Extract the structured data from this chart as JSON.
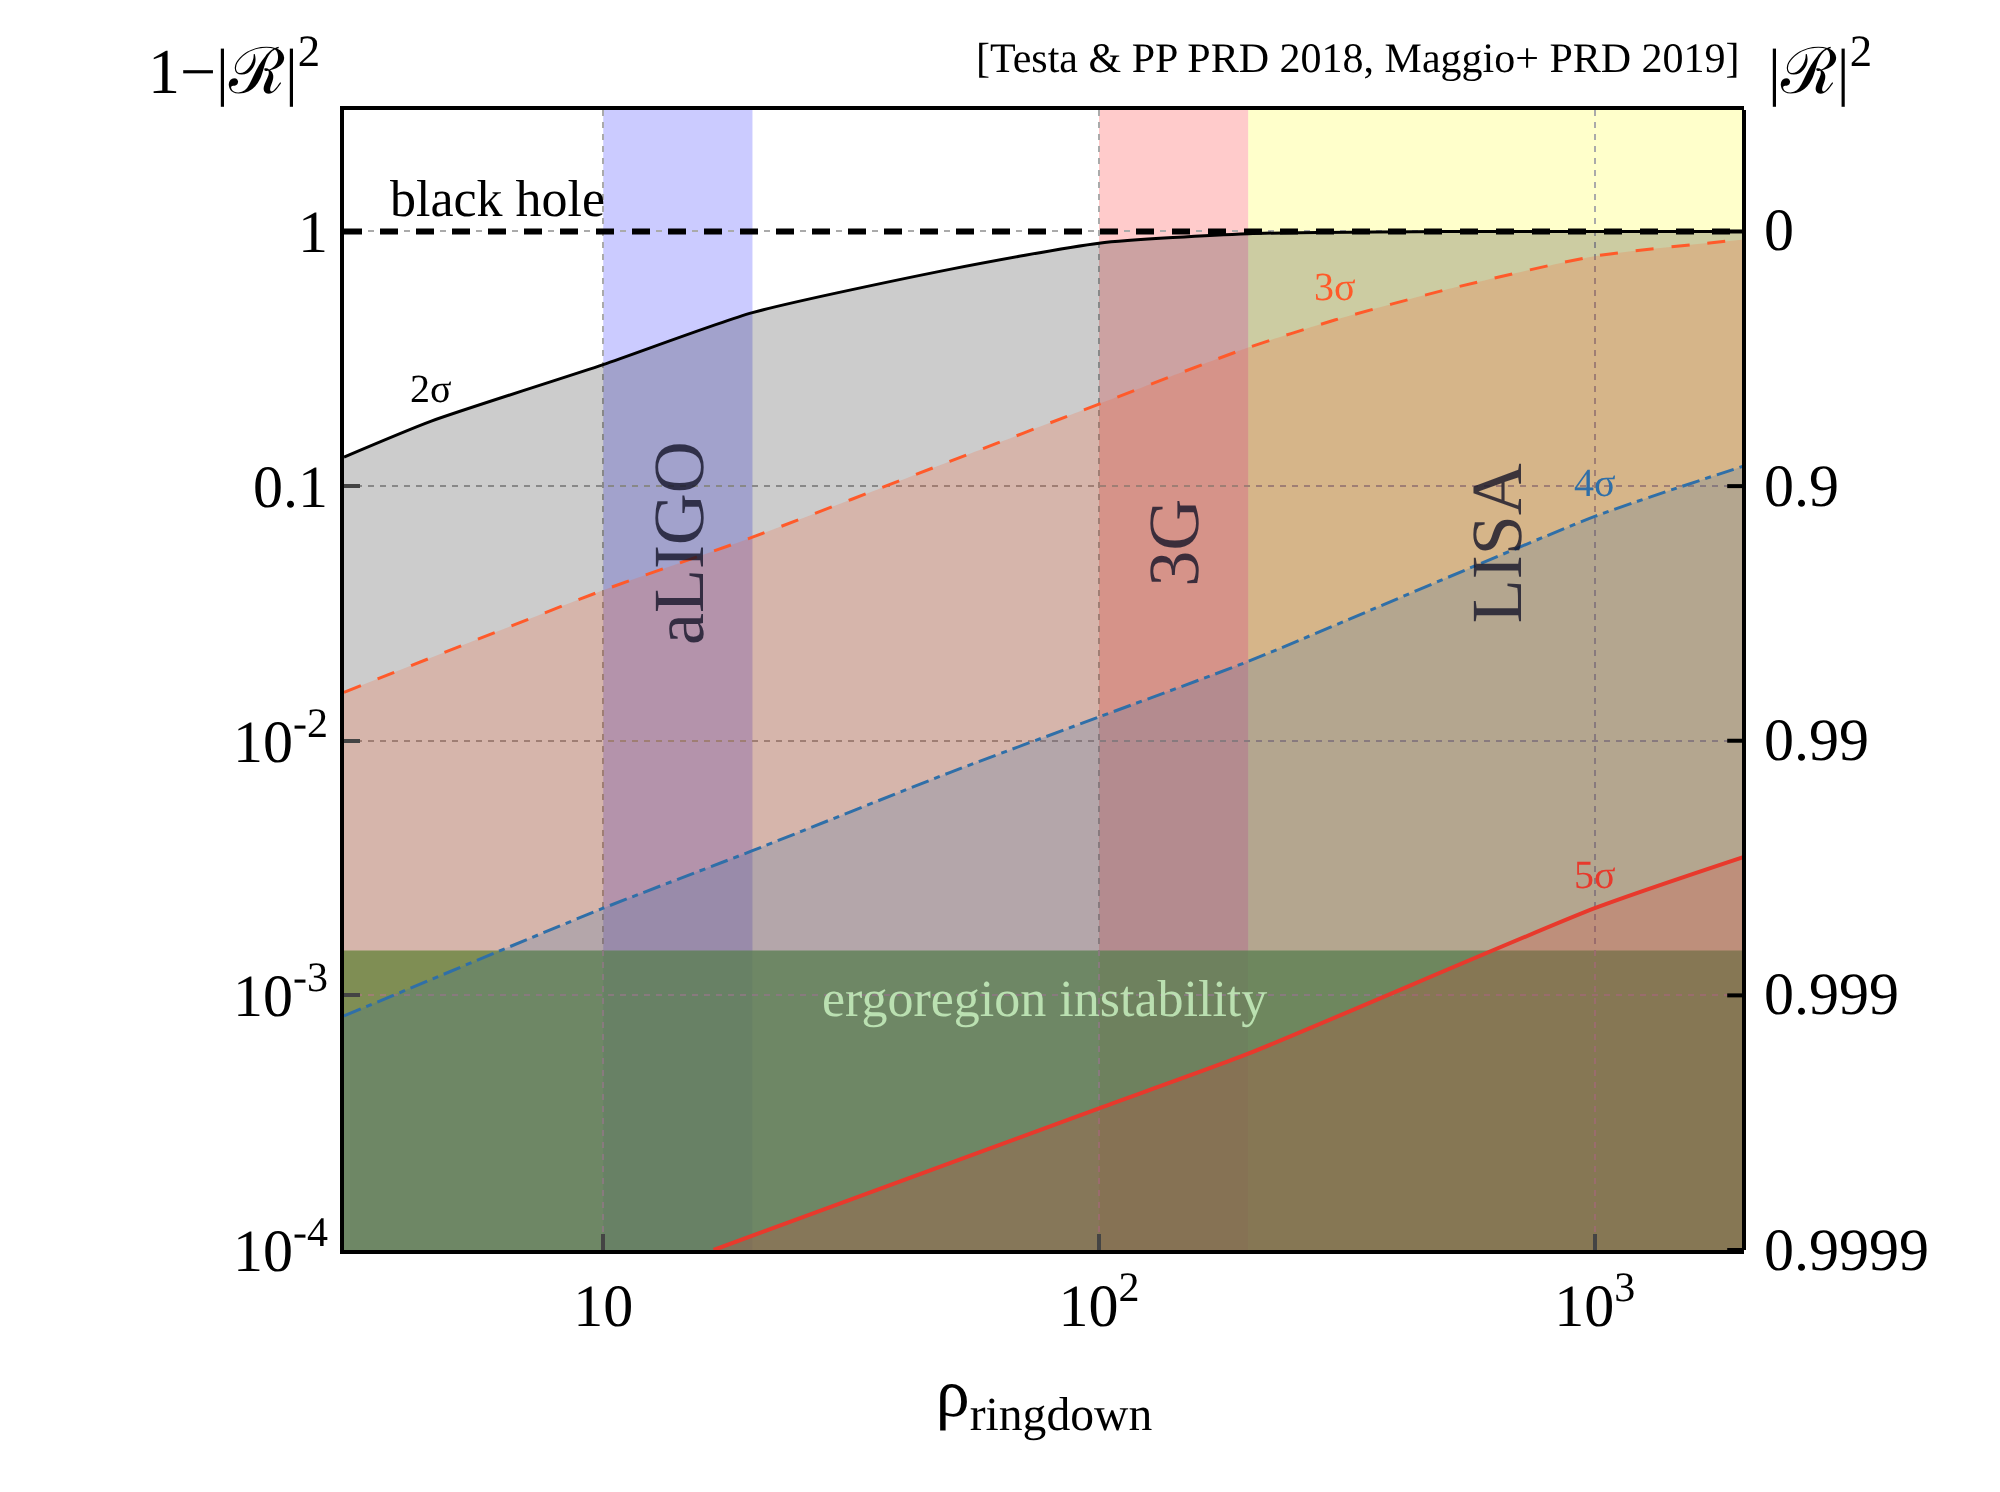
{
  "chart_data": {
    "type": "area",
    "title": "[Testa & PP PRD 2018, Maggio+ PRD 2019]",
    "xlabel": "ρ$_{ringdown}$",
    "ylabel": "1−|ℛ|$^{2}$",
    "y2label": "|ℛ|$^{2}$",
    "log": "xy",
    "grid": true,
    "legend": false,
    "xlim": [
      3,
      2000
    ],
    "ylim": [
      0.0001,
      3
    ],
    "annotations": [
      "0.9999",
      "0.999",
      "0.99",
      "0.9",
      "0"
    ],
    "xticks": [
      10,
      {
        "value": 100,
        "label": "10$^{2}$"
      },
      {
        "value": 1000,
        "label": "10$^{3}$"
      }
    ],
    "yticks": [
      {
        "value": 0.0001,
        "label": "10$^{-4}$"
      },
      {
        "value": 0.001,
        "label": "10$^{-3}$"
      },
      {
        "value": 0.01,
        "label": "10$^{-2}$"
      },
      0.1,
      1
    ],
    "series": [
      {
        "name": "2σ",
        "color": "#000000",
        "line_style": "solid",
        "x": [
          3,
          4.5,
          10,
          20,
          50,
          100,
          200,
          500,
          1000,
          2000
        ],
        "values": [
          0.13,
          0.18,
          0.3,
          0.48,
          0.71,
          0.9,
          0.98,
          1.0,
          1.0,
          1.0
        ]
      },
      {
        "name": "3σ",
        "color": "#ff5a2a",
        "line_style": "dashed",
        "x": [
          3,
          10,
          20,
          50,
          100,
          200,
          300,
          500,
          1000,
          2000
        ],
        "values": [
          0.0155,
          0.039,
          0.063,
          0.125,
          0.21,
          0.35,
          0.45,
          0.59,
          0.8,
          0.93
        ]
      },
      {
        "name": "4σ",
        "color": "#2f6fa8",
        "line_style": "dashdot",
        "x": [
          3,
          10,
          20,
          50,
          100,
          200,
          1000,
          2000
        ],
        "values": [
          0.00083,
          0.0022,
          0.0037,
          0.0075,
          0.0124,
          0.0205,
          0.076,
          0.12
        ]
      },
      {
        "name": "5σ",
        "color": "#e8392c",
        "line_style": "solid",
        "x": [
          16.7,
          100,
          200,
          1000,
          2000
        ],
        "values": [
          0.0001,
          0.00036,
          0.00059,
          0.0022,
          0.0035
        ]
      }
    ],
    "ref_lines": [
      {
        "axis": "y",
        "value": 1,
        "label": "black hole",
        "color": "#000000",
        "line_style": "dashed"
      }
    ],
    "bands": [
      {
        "axis": "x",
        "from": 10,
        "to": 20,
        "label": "aLIGO",
        "color": "#8c8cff"
      },
      {
        "axis": "x",
        "from": 100,
        "to": 200,
        "label": "3G",
        "color": "#ff8c8c"
      },
      {
        "axis": "x",
        "from": 200,
        "to": 2000,
        "label": "LISA",
        "color": "#ffff8c"
      },
      {
        "axis": "y",
        "from": 0.0001,
        "to": 0.0015,
        "label": "ergoregion instability",
        "color": "#4cb04c"
      }
    ]
  }
}
